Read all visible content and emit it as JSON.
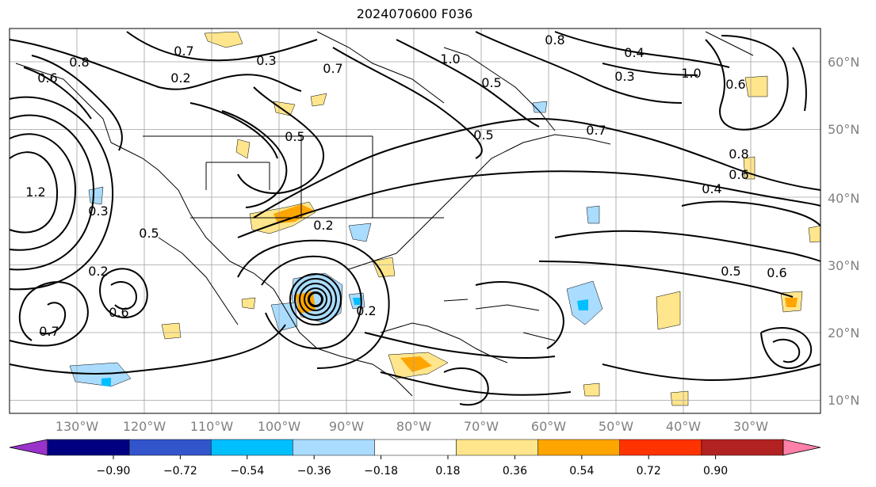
{
  "title": "2024070600 F036",
  "map": {
    "lon_labels": [
      "130°W",
      "120°W",
      "110°W",
      "100°W",
      "90°W",
      "80°W",
      "70°W",
      "60°W",
      "50°W",
      "40°W",
      "30°W"
    ],
    "lat_labels": [
      "60°N",
      "50°N",
      "40°N",
      "30°N",
      "20°N",
      "10°N"
    ],
    "contour_labels": [
      "1.2",
      "0.3",
      "0.2",
      "0.6",
      "0.7",
      "0.5",
      "0.4",
      "0.8",
      "1.0",
      "0.2",
      "0.3",
      "0.5",
      "0.6",
      "0.7",
      "0.2",
      "0.3",
      "0.2",
      "0.5",
      "0.6",
      "0.7",
      "0.8",
      "1.0",
      "0.4",
      "0.6",
      "0.8",
      "0.5",
      "0.5",
      "0.6",
      "0.7"
    ],
    "colors": {
      "contour": "#000000",
      "grid": "#a0a0a0",
      "shade_light_orange": "#ffe68c",
      "shade_orange": "#ffa500",
      "shade_light_blue": "#aadcff",
      "shade_blue": "#00bfff"
    }
  },
  "colorbar": {
    "ticks": [
      "−0.90",
      "−0.72",
      "−0.54",
      "−0.36",
      "−0.18",
      "0.18",
      "0.36",
      "0.54",
      "0.72",
      "0.90"
    ],
    "colors": [
      "#9933cc",
      "#000080",
      "#3355cc",
      "#00bfff",
      "#aadcff",
      "#ffffff",
      "#ffe68c",
      "#ffa500",
      "#ff3300",
      "#b22222",
      "#ff80a8"
    ]
  }
}
